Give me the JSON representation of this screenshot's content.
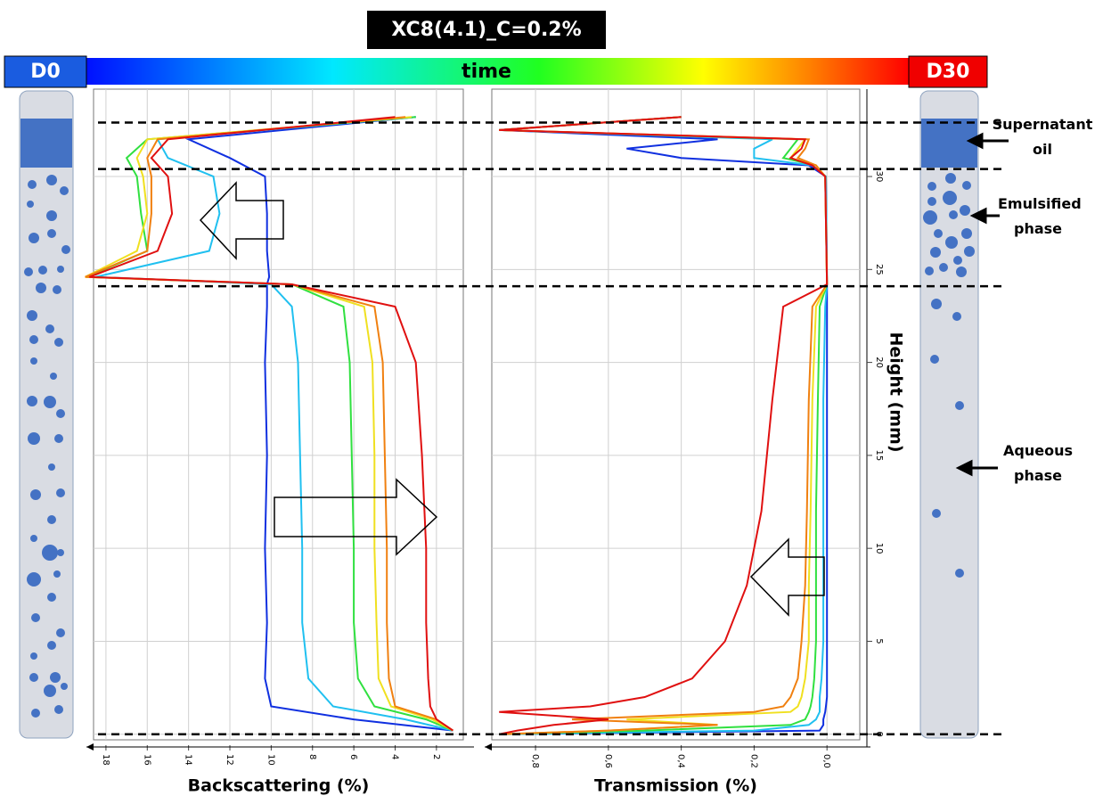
{
  "title": "XC8(4.1)_C=0.2%",
  "time_bar": {
    "label": "time",
    "start": "D0",
    "end": "D30"
  },
  "phase_labels": [
    "Supernatant oil",
    "Emulsified phase",
    "Aqueous phase"
  ],
  "boundaries": [
    32.9,
    30.4,
    24.1,
    0
  ],
  "chart_data": [
    {
      "type": "line",
      "x_label": "Backscattering (%)",
      "xlim": [
        18.6,
        0.7
      ],
      "xticks": [
        18,
        16,
        14,
        12,
        10,
        8,
        6,
        4,
        2
      ],
      "ylim": [
        -0.3,
        34.7
      ],
      "grid": true,
      "y": [
        0.2,
        0.8,
        1.5,
        3,
        6,
        10,
        15,
        20,
        23,
        24.2,
        24.6,
        26,
        28,
        30,
        31,
        32,
        33.2
      ],
      "series": [
        {
          "color": "#1030e0",
          "values": [
            1.2,
            6,
            10,
            10.3,
            10.2,
            10.3,
            10.2,
            10.3,
            10.2,
            10.2,
            10.1,
            10.2,
            10.2,
            10.3,
            12,
            14,
            3
          ]
        },
        {
          "color": "#20c0f0",
          "values": [
            1.2,
            3.5,
            7,
            8.2,
            8.5,
            8.5,
            8.6,
            8.7,
            9,
            10,
            18.5,
            13,
            12.5,
            12.8,
            15,
            15.5,
            3
          ]
        },
        {
          "color": "#30e040",
          "values": [
            1.2,
            2.5,
            5,
            5.8,
            6,
            6,
            6.1,
            6.2,
            6.5,
            9,
            18.9,
            16,
            16.3,
            16.5,
            17,
            16,
            3
          ]
        },
        {
          "color": "#f0e020",
          "values": [
            1.2,
            2.2,
            4.2,
            4.8,
            4.9,
            5,
            5,
            5.1,
            5.5,
            9,
            19,
            16.5,
            16,
            16.2,
            16.5,
            16,
            3.2
          ]
        },
        {
          "color": "#f08010",
          "values": [
            1.2,
            2,
            4,
            4.3,
            4.4,
            4.4,
            4.5,
            4.6,
            5,
            9,
            19,
            16,
            15.8,
            15.8,
            16,
            15.5,
            3.5
          ]
        },
        {
          "color": "#e01010",
          "values": [
            1.2,
            2,
            2.3,
            2.4,
            2.5,
            2.5,
            2.7,
            3,
            4,
            9,
            18.8,
            15.5,
            14.8,
            15,
            15.8,
            15,
            4
          ]
        }
      ]
    },
    {
      "type": "line",
      "x_label": "Transmission (%)",
      "y_label": "Height (mm)",
      "xlim": [
        0.92,
        -0.09
      ],
      "xticks": [
        {
          "value": 0.8,
          "label": "0,8"
        },
        {
          "value": 0.6,
          "label": "0,6"
        },
        {
          "value": 0.4,
          "label": "0,4"
        },
        {
          "value": 0.2,
          "label": "0,2"
        },
        {
          "value": 0,
          "label": "0,0"
        }
      ],
      "ylim": [
        -0.3,
        34.7
      ],
      "yticks": [
        0,
        5,
        10,
        15,
        20,
        25,
        30
      ],
      "grid": true,
      "y": [
        0,
        0.2,
        0.5,
        0.8,
        1.2,
        1.5,
        2,
        3,
        5,
        8,
        12,
        18,
        23,
        24.2,
        30,
        30.6,
        31,
        31.5,
        32,
        32.5,
        33.2
      ],
      "series": [
        {
          "color": "#1030e0",
          "values": [
            0.9,
            0.02,
            0.01,
            0.01,
            0.005,
            0.003,
            0,
            0,
            0,
            0,
            0,
            0,
            0,
            0,
            0.003,
            0.05,
            0.4,
            0.55,
            0.3,
            0.9,
            0.4
          ]
        },
        {
          "color": "#20c0f0",
          "values": [
            0.9,
            0.2,
            0.05,
            0.03,
            0.02,
            0.02,
            0.02,
            0.015,
            0.01,
            0.01,
            0.01,
            0.01,
            0.005,
            0,
            0.003,
            0.04,
            0.2,
            0.2,
            0.15,
            0.9,
            0.4
          ]
        },
        {
          "color": "#30e040",
          "values": [
            0.9,
            0.5,
            0.1,
            0.06,
            0.05,
            0.045,
            0.04,
            0.035,
            0.03,
            0.03,
            0.03,
            0.025,
            0.02,
            0,
            0.005,
            0.03,
            0.12,
            0.1,
            0.08,
            0.9,
            0.4
          ]
        },
        {
          "color": "#f0e020",
          "values": [
            0.9,
            0.6,
            0.3,
            0.55,
            0.1,
            0.08,
            0.07,
            0.06,
            0.05,
            0.05,
            0.045,
            0.04,
            0.03,
            0,
            0.005,
            0.03,
            0.1,
            0.08,
            0.06,
            0.9,
            0.4
          ]
        },
        {
          "color": "#f08010",
          "values": [
            0.9,
            0.6,
            0.3,
            0.7,
            0.2,
            0.12,
            0.1,
            0.08,
            0.07,
            0.06,
            0.055,
            0.05,
            0.04,
            0,
            0.005,
            0.03,
            0.08,
            0.06,
            0.05,
            0.9,
            0.4
          ]
        },
        {
          "color": "#e01010",
          "values": [
            0.9,
            0.85,
            0.75,
            0.6,
            0.9,
            0.65,
            0.5,
            0.37,
            0.28,
            0.22,
            0.18,
            0.15,
            0.12,
            0,
            0.005,
            0.04,
            0.1,
            0.07,
            0.06,
            0.9,
            0.4
          ]
        }
      ]
    }
  ]
}
